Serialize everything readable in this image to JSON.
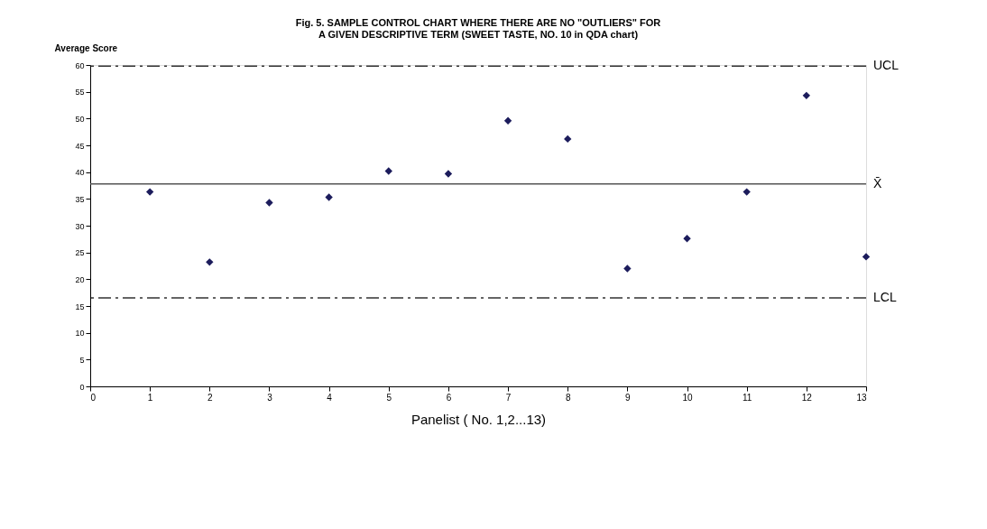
{
  "chart_data": {
    "type": "scatter",
    "title": [
      "Fig. 5. SAMPLE CONTROL CHART WHERE THERE ARE NO \"OUTLIERS\" FOR",
      "A GIVEN DESCRIPTIVE TERM (SWEET TASTE, NO. 10 in QDA chart)"
    ],
    "xlabel": "Panelist ( No. 1,2...13)",
    "ylabel": "Average Score",
    "x": [
      1,
      2,
      3,
      4,
      5,
      6,
      7,
      8,
      9,
      10,
      11,
      12,
      13
    ],
    "series": [
      {
        "color": "#1c1c5c",
        "values": [
          36.3,
          23.2,
          34.3,
          35.3,
          40.2,
          39.7,
          49.6,
          46.2,
          22.0,
          27.6,
          36.3,
          54.3,
          24.2
        ]
      }
    ],
    "marker": "diamond",
    "xlim": [
      0,
      13
    ],
    "xticks": [
      0,
      1,
      2,
      3,
      4,
      5,
      6,
      7,
      8,
      9,
      10,
      11,
      12,
      13
    ],
    "ylim": [
      0,
      60
    ],
    "yticks": [
      0,
      5,
      10,
      15,
      20,
      25,
      30,
      35,
      40,
      45,
      50,
      55,
      60
    ],
    "grid": false,
    "ref_lines": [
      {
        "axis": "y",
        "value": 59.8,
        "label": "UCL",
        "line_style": "dashed",
        "color": "#333333"
      },
      {
        "axis": "y",
        "value": 37.8,
        "label": "X̄",
        "line_style": "solid",
        "color": "#555555"
      },
      {
        "axis": "y",
        "value": 16.5,
        "label": "LCL",
        "line_style": "dashed",
        "color": "#333333"
      }
    ]
  }
}
